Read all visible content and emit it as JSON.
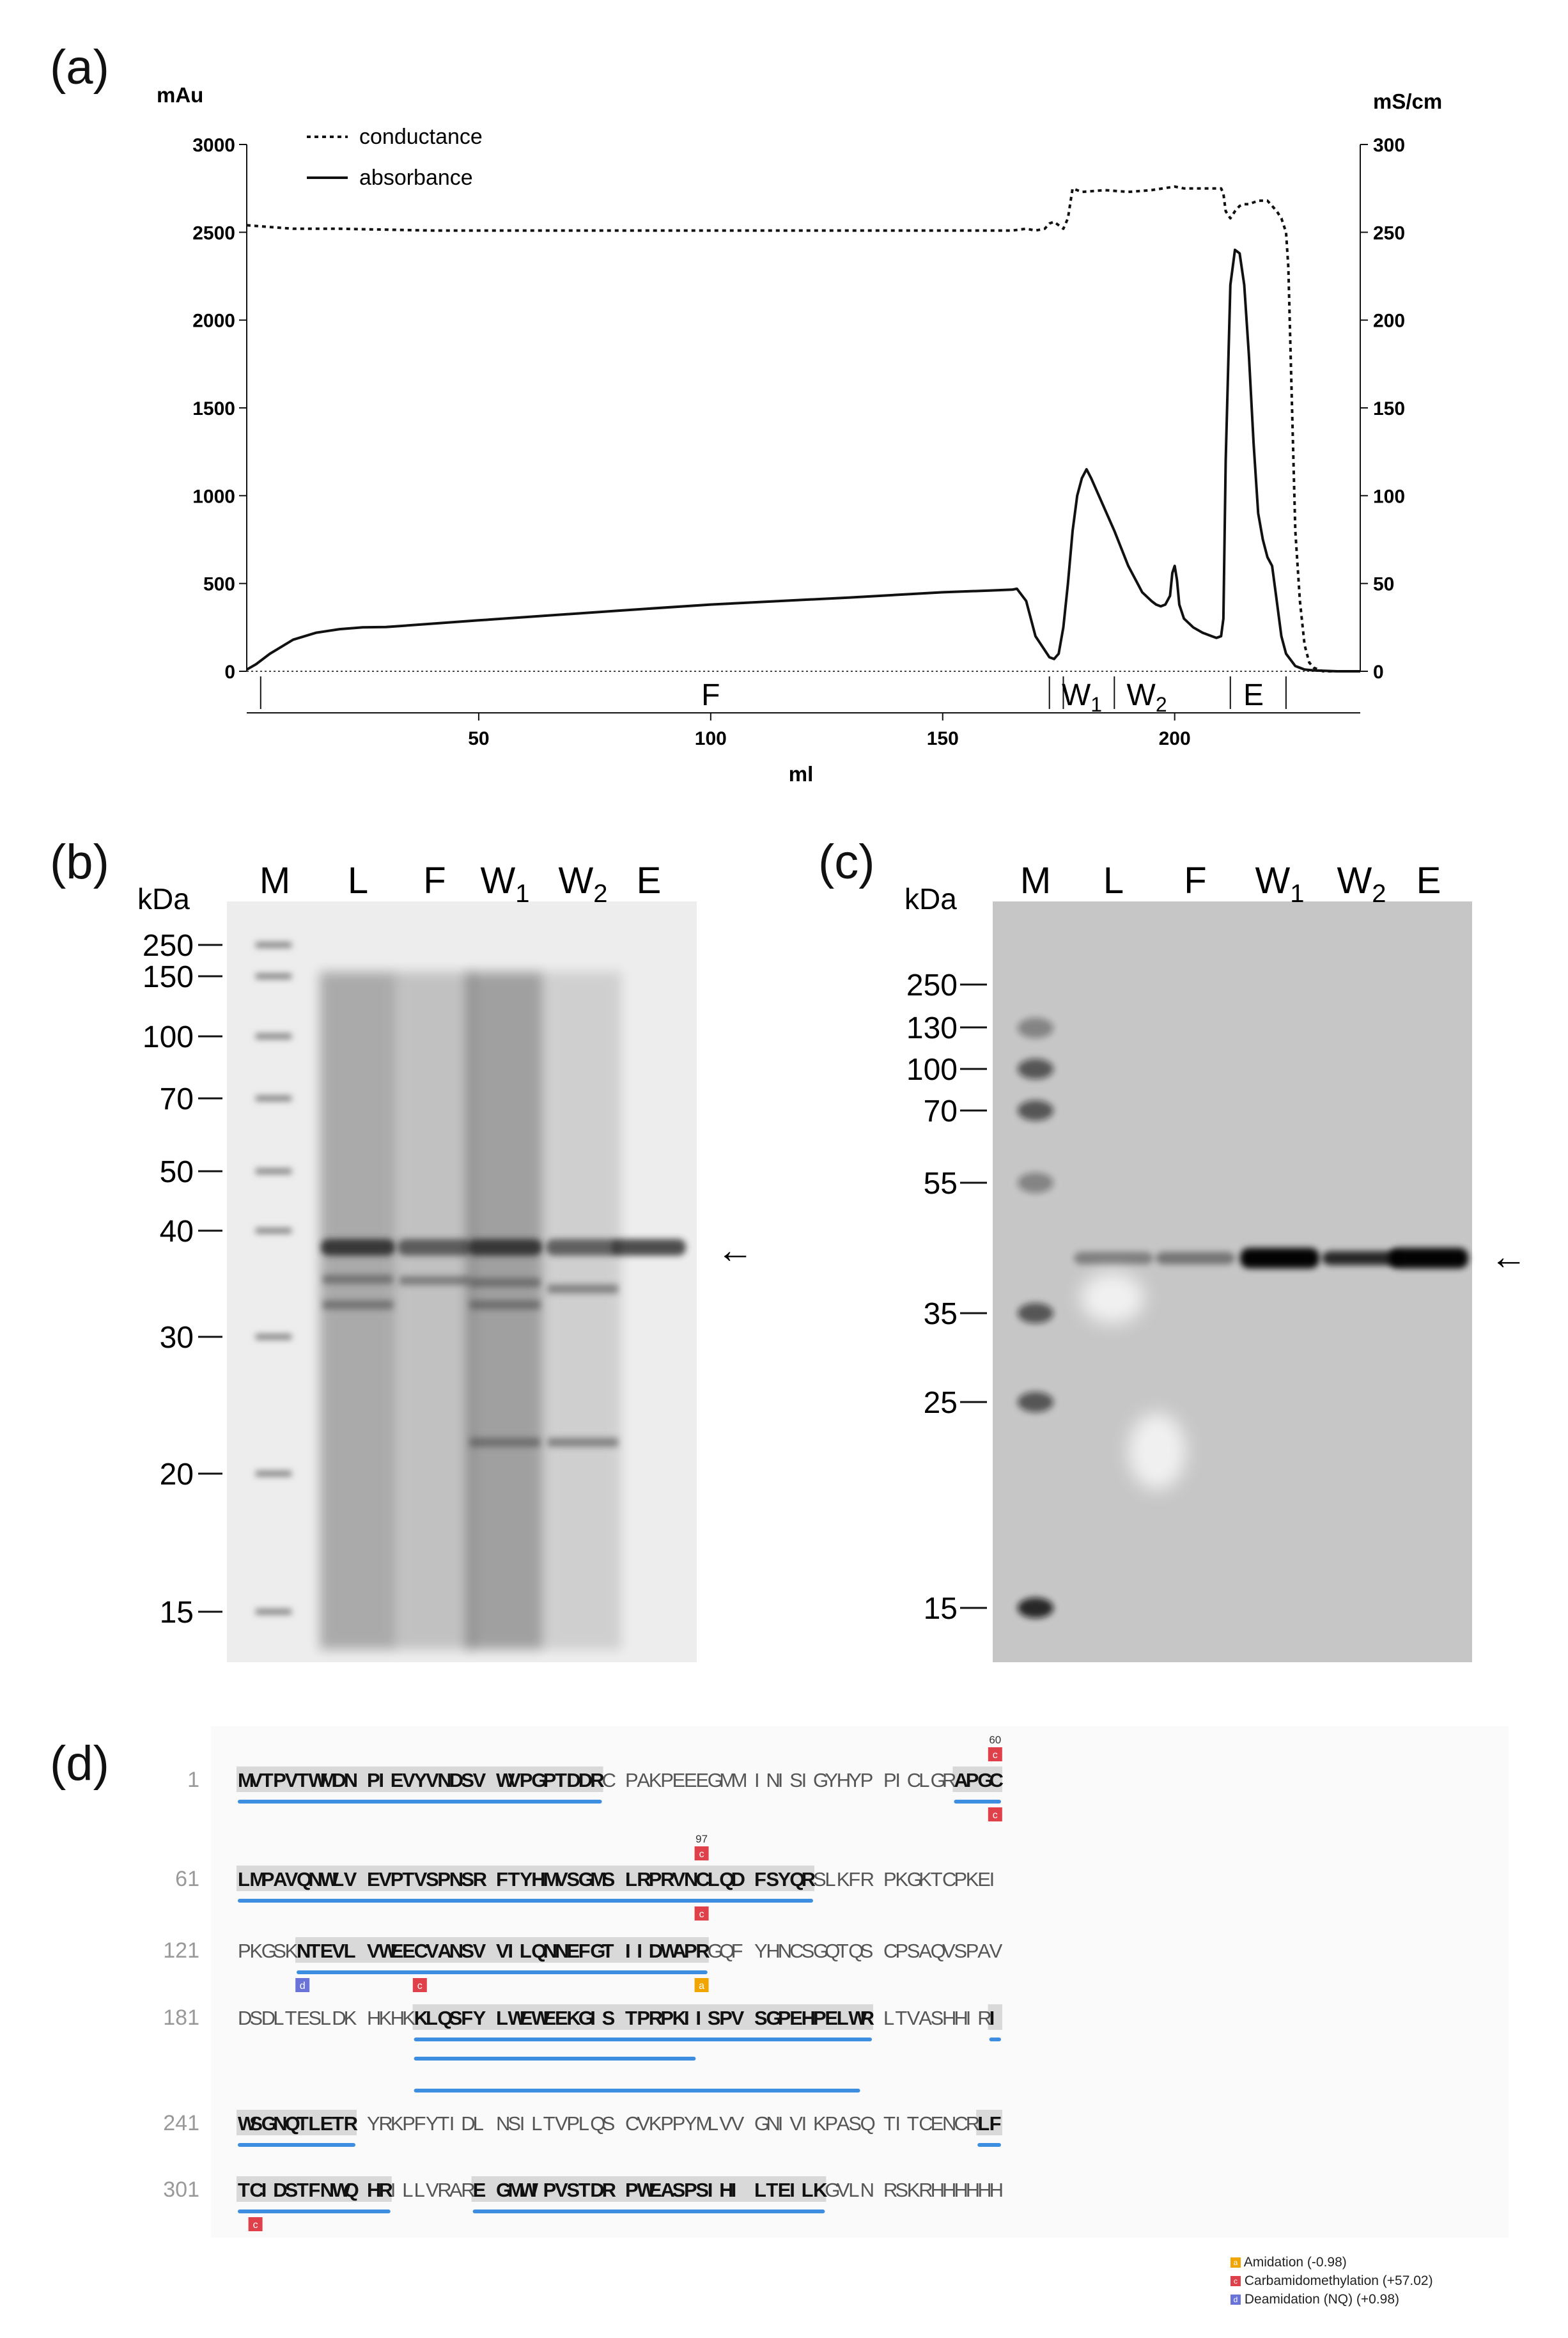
{
  "panels": {
    "a": "(a)",
    "b": "(b)",
    "c": "(c)",
    "d": "(d)"
  },
  "chart_data": {
    "type": "line",
    "left_unit": "mAu",
    "right_unit": "mS/cm",
    "xlabel": "ml",
    "x_ticks": [
      "50",
      "100",
      "150",
      "200"
    ],
    "y_left_ticks": [
      "0",
      "500",
      "1000",
      "1500",
      "2000",
      "2500",
      "3000"
    ],
    "y_right_ticks": [
      "0",
      "50",
      "100",
      "150",
      "200",
      "250",
      "300"
    ],
    "xlim": [
      0,
      240
    ],
    "ylim_left": [
      0,
      3000
    ],
    "ylim_right": [
      0,
      300
    ],
    "legend": [
      "conductance",
      "absorbance"
    ],
    "fractions": [
      "F",
      "W1",
      "W2",
      "E"
    ],
    "series": [
      {
        "name": "absorbance",
        "axis": "left",
        "style": "solid",
        "x": [
          0,
          2,
          5,
          10,
          15,
          20,
          25,
          30,
          50,
          80,
          100,
          130,
          150,
          160,
          165,
          166,
          168,
          170,
          172,
          173,
          174,
          175,
          176,
          177,
          178,
          179,
          180,
          181,
          182,
          184,
          187,
          190,
          193,
          195,
          196,
          197,
          198,
          199,
          199.5,
          200,
          200.5,
          201,
          202,
          204,
          206,
          208,
          209,
          210,
          210.5,
          211,
          212,
          213,
          214,
          215,
          216,
          217,
          218,
          219,
          220,
          221,
          222,
          223,
          224,
          226,
          228,
          230,
          235,
          240
        ],
        "y": [
          10,
          40,
          100,
          180,
          220,
          240,
          250,
          252,
          290,
          345,
          380,
          420,
          450,
          460,
          465,
          470,
          400,
          200,
          120,
          80,
          70,
          100,
          250,
          500,
          800,
          1000,
          1100,
          1150,
          1100,
          980,
          800,
          600,
          450,
          400,
          380,
          370,
          380,
          430,
          560,
          600,
          520,
          380,
          300,
          250,
          220,
          200,
          190,
          200,
          300,
          1200,
          2200,
          2400,
          2380,
          2200,
          1800,
          1300,
          900,
          750,
          650,
          600,
          400,
          200,
          100,
          30,
          10,
          5,
          0,
          0
        ]
      },
      {
        "name": "conductance",
        "axis": "right",
        "style": "dotted",
        "x": [
          0,
          5,
          10,
          20,
          40,
          60,
          80,
          100,
          120,
          140,
          160,
          165,
          168,
          170,
          172,
          173,
          174,
          175,
          176,
          177,
          178,
          180,
          185,
          190,
          195,
          200,
          202,
          205,
          208,
          210,
          210.5,
          211,
          212,
          213,
          214,
          215,
          216,
          218,
          220,
          221,
          222,
          223,
          224,
          224.5,
          225,
          226,
          227,
          228,
          229,
          230,
          232,
          235,
          240
        ],
        "y": [
          254,
          253,
          252,
          252,
          251,
          251,
          251,
          251,
          251,
          251,
          251,
          251,
          252,
          251,
          252,
          255,
          256,
          254,
          252,
          258,
          275,
          273,
          274,
          273,
          274,
          276,
          275,
          275,
          275,
          275,
          272,
          262,
          258,
          262,
          265,
          266,
          266,
          268,
          268,
          265,
          262,
          258,
          250,
          230,
          180,
          80,
          40,
          15,
          5,
          2,
          0,
          0,
          0
        ]
      }
    ]
  },
  "gel_b": {
    "kda_label": "kDa",
    "lanes": [
      "M",
      "L",
      "F",
      "W",
      "W",
      "E"
    ],
    "lane_subs": [
      "",
      "",
      "",
      "1",
      "2",
      ""
    ],
    "markers": [
      "250",
      "150",
      "100",
      "70",
      "50",
      "40",
      "30",
      "20",
      "15"
    ],
    "arrow": "←"
  },
  "gel_c": {
    "kda_label": "kDa",
    "lanes": [
      "M",
      "L",
      "F",
      "W",
      "W",
      "E"
    ],
    "lane_subs": [
      "",
      "",
      "",
      "1",
      "2",
      ""
    ],
    "markers": [
      "250",
      "130",
      "100",
      "70",
      "55",
      "35",
      "25",
      "15"
    ],
    "arrow": "←"
  },
  "sequence": {
    "lines": [
      {
        "num": "1",
        "groups": [
          "MVTPVTWMDN",
          "PIEVYVNDSV",
          "WVPGPTDDRC",
          "PAKPEEEGMM",
          "INISIGYHYP",
          "PICLGRAPGC"
        ],
        "bold": [
          [
            0,
            29
          ],
          [
            56,
            60
          ]
        ]
      },
      {
        "num": "61",
        "groups": [
          "LMPAVQNWLV",
          "EVPTVSPNSR",
          "FTYHMVSGMS",
          "LRPRVNCLQD",
          "FSYQRSLKFR",
          "PKGKTCPKEI"
        ],
        "bold": [
          [
            0,
            45
          ]
        ]
      },
      {
        "num": "121",
        "groups": [
          "PKGSKNTEVL",
          "VWEECVANSV",
          "VILQNNEFGT",
          "IIDWAPRGQF",
          "YHNCSGQTQS",
          "CPSAQVSPAV"
        ],
        "bold": [
          [
            5,
            37
          ]
        ]
      },
      {
        "num": "181",
        "groups": [
          "DSDLTESLDK",
          "HKHKKLQSFY",
          "LWEWEEKGIS",
          "TPRPKIISPV",
          "SGPEHPELWR",
          "LTVASHHIRI"
        ],
        "bold": [
          [
            14,
            50
          ],
          [
            59,
            60
          ]
        ]
      },
      {
        "num": "241",
        "groups": [
          "WSGNQTLETR",
          "YRKPFYTIDL",
          "NSILTVPLQS",
          "CVKPPYMLVV",
          "GNIVIKPASQ",
          "TITCENCRLF"
        ],
        "bold": [
          [
            0,
            10
          ],
          [
            58,
            60
          ]
        ]
      },
      {
        "num": "301",
        "groups": [
          "TCIDSTFNWQ",
          "HRILLVRARE",
          "GMWIPVSTDR",
          "PWEASPSIHI",
          "LTEILKGVLN",
          "RSKRHHHHHH"
        ],
        "bold": [
          [
            0,
            12
          ],
          [
            19,
            46
          ]
        ]
      }
    ],
    "mod_numbers": [
      "60",
      "97"
    ],
    "mod_letters": {
      "amidation": "a",
      "carbamidomethylation": "c",
      "deamidation": "d"
    },
    "legend": [
      "Amidation (-0.98)",
      "Carbamidomethylation (+57.02)",
      "Deamidation (NQ) (+0.98)"
    ],
    "colors": {
      "amidation": "#f0a500",
      "carbamidomethylation": "#e0404a",
      "deamidation": "#6a73d8",
      "peptide_bar": "#3d8ee0",
      "highlight": "#d9d9d9"
    }
  }
}
